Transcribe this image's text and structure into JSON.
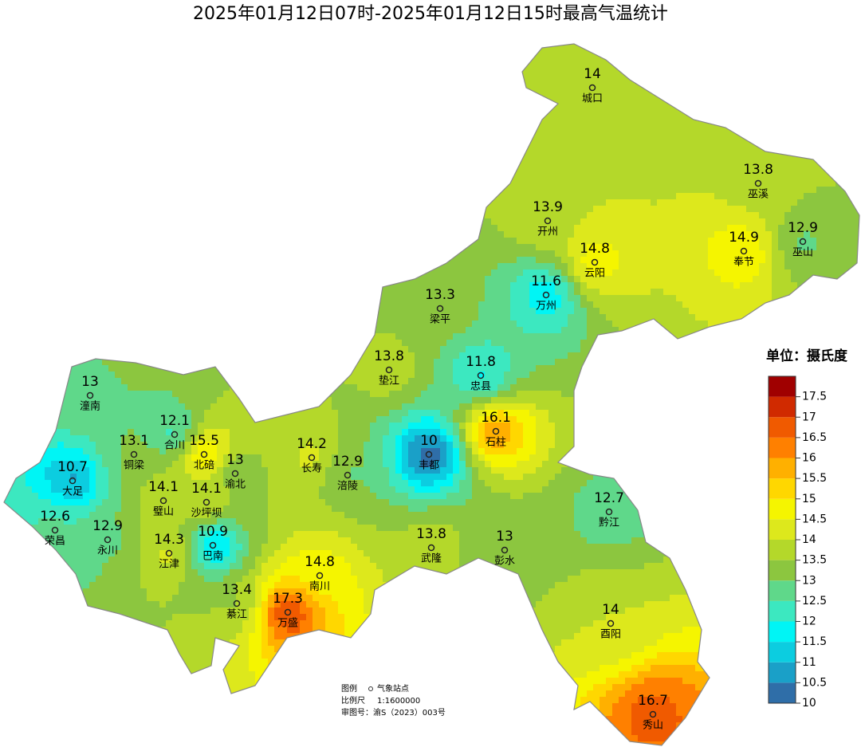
{
  "title": "2025年01月12日07时-2025年01月12日15时最高气温统计",
  "stations": [
    {
      "name": "城口",
      "value": 14
    },
    {
      "name": "巫溪",
      "value": 13.8
    },
    {
      "name": "开州",
      "value": 13.9
    },
    {
      "name": "巫山",
      "value": 12.9
    },
    {
      "name": "奉节",
      "value": 14.9
    },
    {
      "name": "云阳",
      "value": 14.8
    },
    {
      "name": "梁平",
      "value": 13.3
    },
    {
      "name": "万州",
      "value": 11.6
    },
    {
      "name": "垫江",
      "value": 13.8
    },
    {
      "name": "忠县",
      "value": 11.8
    },
    {
      "name": "潼南",
      "value": 13
    },
    {
      "name": "合川",
      "value": 12.1
    },
    {
      "name": "石柱",
      "value": 16.1
    },
    {
      "name": "铜梁",
      "value": 13.1
    },
    {
      "name": "北碚",
      "value": 15.5
    },
    {
      "name": "长寿",
      "value": 14.2
    },
    {
      "name": "丰都",
      "value": 10
    },
    {
      "name": "大足",
      "value": 10.7
    },
    {
      "name": "渝北",
      "value": 13
    },
    {
      "name": "涪陵",
      "value": 12.9
    },
    {
      "name": "璧山",
      "value": 14.1
    },
    {
      "name": "沙坪坝",
      "value": 14.1
    },
    {
      "name": "荣昌",
      "value": 12.6
    },
    {
      "name": "永川",
      "value": 12.9
    },
    {
      "name": "黔江",
      "value": 12.7
    },
    {
      "name": "巴南",
      "value": 10.9
    },
    {
      "name": "江津",
      "value": 14.3
    },
    {
      "name": "武隆",
      "value": 13.8
    },
    {
      "name": "彭水",
      "value": 13
    },
    {
      "name": "南川",
      "value": 14.8
    },
    {
      "name": "綦江",
      "value": 13.4
    },
    {
      "name": "万盛",
      "value": 17.3
    },
    {
      "name": "酉阳",
      "value": 14
    },
    {
      "name": "秀山",
      "value": 16.7
    }
  ],
  "legend": {
    "title": "单位：摄氏度",
    "ticks": [
      10,
      10.5,
      11,
      11.5,
      12,
      12.5,
      13,
      13.5,
      14,
      14.5,
      15,
      15.5,
      16,
      16.5,
      17,
      17.5
    ],
    "colors": [
      "#2f6ea8",
      "#1aa0c8",
      "#0ccde0",
      "#00f5f5",
      "#3ce8c0",
      "#5fd88a",
      "#8cc63f",
      "#b4d82a",
      "#dde81c",
      "#f5f500",
      "#ffd700",
      "#ffb000",
      "#ff8000",
      "#f05a00",
      "#d02a00",
      "#a00000"
    ]
  },
  "notes": {
    "legend_label": "图例",
    "station_label": "气象站点",
    "scale_label": "比例尺",
    "scale": "1:1600000",
    "approval": "审图号：渝S（2023）003号"
  }
}
